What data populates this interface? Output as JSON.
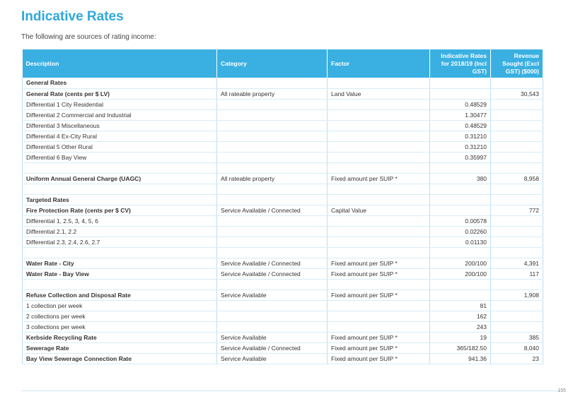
{
  "title": "Indicative Rates",
  "intro": "The following are sources of rating income:",
  "table": {
    "headers": [
      "Description",
      "Category",
      "Factor",
      "Indicative Rates for 2018/19 (Incl GST)",
      "Revenue Sought (Excl GST) ($000)"
    ],
    "rows": [
      {
        "type": "hdr",
        "cells": [
          "General Rates",
          "",
          "",
          "",
          ""
        ]
      },
      {
        "type": "bold",
        "cells": [
          "General Rate (cents per $ LV)",
          "All rateable property",
          "Land Value",
          "",
          "30,543"
        ]
      },
      {
        "type": "data",
        "cells": [
          "Differential 1  City Residential",
          "",
          "",
          "0.48529",
          ""
        ]
      },
      {
        "type": "data",
        "cells": [
          "Differential 2  Commercial and Industrial",
          "",
          "",
          "1.30477",
          ""
        ]
      },
      {
        "type": "data",
        "cells": [
          "Differential 3  Miscellaneous",
          "",
          "",
          "0.48529",
          ""
        ]
      },
      {
        "type": "data",
        "cells": [
          "Differential 4  Ex-City Rural",
          "",
          "",
          "0.31210",
          ""
        ]
      },
      {
        "type": "data",
        "cells": [
          "Differential 5  Other Rural",
          "",
          "",
          "0.31210",
          ""
        ]
      },
      {
        "type": "data",
        "cells": [
          "Differential 6  Bay View",
          "",
          "",
          "0.35997",
          ""
        ]
      },
      {
        "type": "blank",
        "cells": [
          "",
          "",
          "",
          "",
          ""
        ]
      },
      {
        "type": "bold",
        "cells": [
          "Uniform Annual General Charge (UAGC)",
          "All rateable property",
          "Fixed amount per SUIP *",
          "380",
          "8,958"
        ]
      },
      {
        "type": "blank",
        "cells": [
          "",
          "",
          "",
          "",
          ""
        ]
      },
      {
        "type": "hdr",
        "cells": [
          "Targeted Rates",
          "",
          "",
          "",
          ""
        ]
      },
      {
        "type": "bold",
        "cells": [
          "Fire Protection Rate (cents per $ CV)",
          "Service Available / Connected",
          "Capital Value",
          "",
          "772"
        ]
      },
      {
        "type": "data",
        "cells": [
          "Differential 1, 2.5, 3, 4, 5, 6",
          "",
          "",
          "0.00578",
          ""
        ]
      },
      {
        "type": "data",
        "cells": [
          "Differential 2.1, 2.2",
          "",
          "",
          "0.02260",
          ""
        ]
      },
      {
        "type": "data",
        "cells": [
          "Differential 2.3, 2.4, 2.6, 2.7",
          "",
          "",
          "0.01130",
          ""
        ]
      },
      {
        "type": "blank",
        "cells": [
          "",
          "",
          "",
          "",
          ""
        ]
      },
      {
        "type": "bold",
        "cells": [
          "Water Rate - City",
          "Service Available / Connected",
          "Fixed amount per SUIP *",
          "200/100",
          "4,391"
        ]
      },
      {
        "type": "bold",
        "cells": [
          "Water Rate - Bay View",
          "Service Available / Connected",
          "Fixed amount per SUIP *",
          "200/100",
          "117"
        ]
      },
      {
        "type": "blank",
        "cells": [
          "",
          "",
          "",
          "",
          ""
        ]
      },
      {
        "type": "bold",
        "cells": [
          "Refuse Collection and Disposal Rate",
          "Service Available",
          "Fixed amount per SUIP *",
          "",
          "1,908"
        ]
      },
      {
        "type": "data",
        "cells": [
          "1 collection per week",
          "",
          "",
          "81",
          ""
        ]
      },
      {
        "type": "data",
        "cells": [
          "2 collections per week",
          "",
          "",
          "162",
          ""
        ]
      },
      {
        "type": "data",
        "cells": [
          "3 collections per week",
          "",
          "",
          "243",
          ""
        ]
      },
      {
        "type": "bold",
        "cells": [
          "Kerbside Recycling Rate",
          "Service Available",
          "Fixed amount per SUIP *",
          "19",
          "385"
        ]
      },
      {
        "type": "bold",
        "cells": [
          "Sewerage Rate",
          "Service Available / Connected",
          "Fixed amount per SUIP *",
          "365/182.50",
          "8,040"
        ]
      },
      {
        "type": "bold",
        "cells": [
          "Bay View Sewerage Connection Rate",
          "Service Available",
          "Fixed amount per SUIP *",
          "941.36",
          "23"
        ]
      }
    ]
  },
  "page_number": "155"
}
